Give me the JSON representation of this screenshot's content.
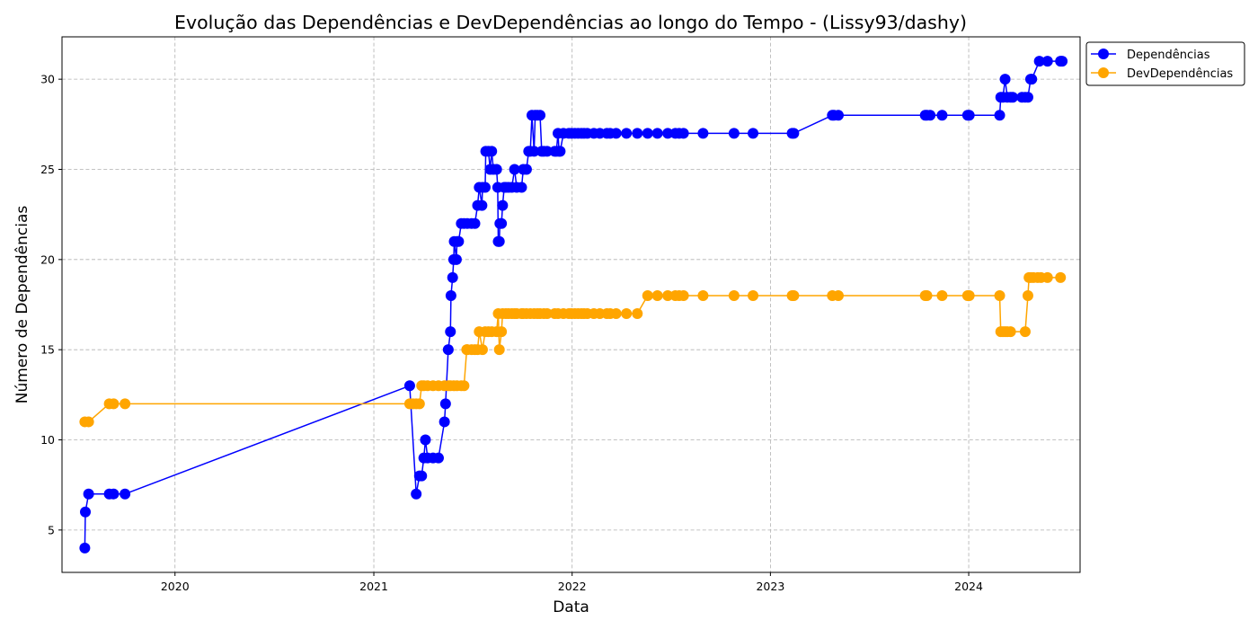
{
  "chart_data": {
    "type": "line",
    "title": "Evolução das Dependências e DevDependências ao longo do Tempo - (Lissy93/dashy)",
    "xlabel": "Data",
    "ylabel": "Número de Dependências",
    "xlim": [
      "2019-06-07",
      "2024-07-24"
    ],
    "ylim": [
      2.65,
      32.35
    ],
    "x_ticks": [
      "2020-01-01",
      "2021-01-01",
      "2022-01-01",
      "2023-01-01",
      "2024-01-01"
    ],
    "x_tick_labels": [
      "2020",
      "2021",
      "2022",
      "2023",
      "2024"
    ],
    "y_ticks": [
      5,
      10,
      15,
      20,
      25,
      30
    ],
    "grid": true,
    "legend_position": "upper-right-outside",
    "series": [
      {
        "name": "Dependências",
        "color": "#0000ff",
        "points": [
          [
            "2019-07-19",
            4
          ],
          [
            "2019-07-20",
            6
          ],
          [
            "2019-07-26",
            7
          ],
          [
            "2019-09-02",
            7
          ],
          [
            "2019-09-10",
            7
          ],
          [
            "2019-10-01",
            7
          ],
          [
            "2021-03-08",
            13
          ],
          [
            "2021-03-20",
            7
          ],
          [
            "2021-03-26",
            8
          ],
          [
            "2021-03-30",
            8
          ],
          [
            "2021-04-03",
            9
          ],
          [
            "2021-04-06",
            10
          ],
          [
            "2021-04-10",
            9
          ],
          [
            "2021-04-20",
            9
          ],
          [
            "2021-04-30",
            9
          ],
          [
            "2021-05-11",
            11
          ],
          [
            "2021-05-13",
            12
          ],
          [
            "2021-05-18",
            15
          ],
          [
            "2021-05-22",
            16
          ],
          [
            "2021-05-23",
            18
          ],
          [
            "2021-05-26",
            19
          ],
          [
            "2021-05-28",
            20
          ],
          [
            "2021-05-29",
            21
          ],
          [
            "2021-06-02",
            20
          ],
          [
            "2021-06-03",
            21
          ],
          [
            "2021-06-06",
            21
          ],
          [
            "2021-06-11",
            22
          ],
          [
            "2021-06-16",
            22
          ],
          [
            "2021-06-22",
            22
          ],
          [
            "2021-06-30",
            22
          ],
          [
            "2021-07-06",
            22
          ],
          [
            "2021-07-11",
            23
          ],
          [
            "2021-07-14",
            24
          ],
          [
            "2021-07-19",
            23
          ],
          [
            "2021-07-20",
            24
          ],
          [
            "2021-07-25",
            24
          ],
          [
            "2021-07-26",
            26
          ],
          [
            "2021-07-31",
            26
          ],
          [
            "2021-08-03",
            25
          ],
          [
            "2021-08-06",
            26
          ],
          [
            "2021-08-09",
            25
          ],
          [
            "2021-08-15",
            25
          ],
          [
            "2021-08-17",
            24
          ],
          [
            "2021-08-18",
            21
          ],
          [
            "2021-08-20",
            21
          ],
          [
            "2021-08-21",
            22
          ],
          [
            "2021-08-24",
            22
          ],
          [
            "2021-08-26",
            23
          ],
          [
            "2021-08-29",
            24
          ],
          [
            "2021-09-01",
            24
          ],
          [
            "2021-09-06",
            24
          ],
          [
            "2021-09-12",
            24
          ],
          [
            "2021-09-17",
            25
          ],
          [
            "2021-09-21",
            24
          ],
          [
            "2021-09-30",
            24
          ],
          [
            "2021-10-03",
            25
          ],
          [
            "2021-10-09",
            25
          ],
          [
            "2021-10-13",
            26
          ],
          [
            "2021-10-16",
            26
          ],
          [
            "2021-10-19",
            28
          ],
          [
            "2021-10-23",
            26
          ],
          [
            "2021-10-25",
            28
          ],
          [
            "2021-10-29",
            28
          ],
          [
            "2021-11-03",
            28
          ],
          [
            "2021-11-06",
            26
          ],
          [
            "2021-11-10",
            26
          ],
          [
            "2021-11-16",
            26
          ],
          [
            "2021-11-30",
            26
          ],
          [
            "2021-12-03",
            26
          ],
          [
            "2021-12-06",
            27
          ],
          [
            "2021-12-08",
            26
          ],
          [
            "2021-12-10",
            26
          ],
          [
            "2021-12-16",
            27
          ],
          [
            "2021-12-26",
            27
          ],
          [
            "2021-12-31",
            27
          ],
          [
            "2022-01-06",
            27
          ],
          [
            "2022-01-12",
            27
          ],
          [
            "2022-01-18",
            27
          ],
          [
            "2022-01-23",
            27
          ],
          [
            "2022-01-29",
            27
          ],
          [
            "2022-02-10",
            27
          ],
          [
            "2022-02-21",
            27
          ],
          [
            "2022-03-06",
            27
          ],
          [
            "2022-03-12",
            27
          ],
          [
            "2022-03-23",
            27
          ],
          [
            "2022-04-11",
            27
          ],
          [
            "2022-05-01",
            27
          ],
          [
            "2022-05-20",
            27
          ],
          [
            "2022-06-07",
            27
          ],
          [
            "2022-06-26",
            27
          ],
          [
            "2022-07-10",
            27
          ],
          [
            "2022-07-17",
            27
          ],
          [
            "2022-07-25",
            27
          ],
          [
            "2022-08-30",
            27
          ],
          [
            "2022-10-26",
            27
          ],
          [
            "2022-11-30",
            27
          ],
          [
            "2023-02-10",
            27
          ],
          [
            "2023-02-13",
            27
          ],
          [
            "2023-04-25",
            28
          ],
          [
            "2023-04-28",
            28
          ],
          [
            "2023-05-06",
            28
          ],
          [
            "2023-10-13",
            28
          ],
          [
            "2023-10-16",
            28
          ],
          [
            "2023-10-22",
            28
          ],
          [
            "2023-11-13",
            28
          ],
          [
            "2023-12-30",
            28
          ],
          [
            "2024-01-02",
            28
          ],
          [
            "2024-02-27",
            28
          ],
          [
            "2024-02-29",
            29
          ],
          [
            "2024-03-04",
            29
          ],
          [
            "2024-03-08",
            30
          ],
          [
            "2024-03-12",
            29
          ],
          [
            "2024-03-18",
            29
          ],
          [
            "2024-03-22",
            29
          ],
          [
            "2024-04-08",
            29
          ],
          [
            "2024-04-14",
            29
          ],
          [
            "2024-04-19",
            29
          ],
          [
            "2024-04-24",
            30
          ],
          [
            "2024-04-26",
            30
          ],
          [
            "2024-05-10",
            31
          ],
          [
            "2024-05-25",
            31
          ],
          [
            "2024-06-18",
            31
          ],
          [
            "2024-06-21",
            31
          ]
        ]
      },
      {
        "name": "DevDependências",
        "color": "#ffa500",
        "points": [
          [
            "2019-07-19",
            11
          ],
          [
            "2019-07-26",
            11
          ],
          [
            "2019-09-02",
            12
          ],
          [
            "2019-09-10",
            12
          ],
          [
            "2019-10-01",
            12
          ],
          [
            "2021-03-08",
            12
          ],
          [
            "2021-03-14",
            12
          ],
          [
            "2021-03-20",
            12
          ],
          [
            "2021-03-26",
            12
          ],
          [
            "2021-03-30",
            13
          ],
          [
            "2021-04-03",
            13
          ],
          [
            "2021-04-10",
            13
          ],
          [
            "2021-04-20",
            13
          ],
          [
            "2021-04-30",
            13
          ],
          [
            "2021-05-11",
            13
          ],
          [
            "2021-05-18",
            13
          ],
          [
            "2021-05-22",
            13
          ],
          [
            "2021-05-28",
            13
          ],
          [
            "2021-06-03",
            13
          ],
          [
            "2021-06-11",
            13
          ],
          [
            "2021-06-16",
            13
          ],
          [
            "2021-06-21",
            15
          ],
          [
            "2021-06-22",
            15
          ],
          [
            "2021-06-30",
            15
          ],
          [
            "2021-07-06",
            15
          ],
          [
            "2021-07-11",
            15
          ],
          [
            "2021-07-14",
            16
          ],
          [
            "2021-07-20",
            15
          ],
          [
            "2021-07-25",
            16
          ],
          [
            "2021-07-31",
            16
          ],
          [
            "2021-08-06",
            16
          ],
          [
            "2021-08-15",
            16
          ],
          [
            "2021-08-18",
            17
          ],
          [
            "2021-08-20",
            15
          ],
          [
            "2021-08-24",
            16
          ],
          [
            "2021-08-26",
            17
          ],
          [
            "2021-09-01",
            17
          ],
          [
            "2021-09-06",
            17
          ],
          [
            "2021-09-12",
            17
          ],
          [
            "2021-09-17",
            17
          ],
          [
            "2021-09-21",
            17
          ],
          [
            "2021-09-30",
            17
          ],
          [
            "2021-10-03",
            17
          ],
          [
            "2021-10-09",
            17
          ],
          [
            "2021-10-16",
            17
          ],
          [
            "2021-10-23",
            17
          ],
          [
            "2021-10-29",
            17
          ],
          [
            "2021-11-03",
            17
          ],
          [
            "2021-11-10",
            17
          ],
          [
            "2021-11-16",
            17
          ],
          [
            "2021-11-30",
            17
          ],
          [
            "2021-12-06",
            17
          ],
          [
            "2021-12-16",
            17
          ],
          [
            "2021-12-26",
            17
          ],
          [
            "2021-12-31",
            17
          ],
          [
            "2022-01-06",
            17
          ],
          [
            "2022-01-12",
            17
          ],
          [
            "2022-01-18",
            17
          ],
          [
            "2022-01-23",
            17
          ],
          [
            "2022-01-29",
            17
          ],
          [
            "2022-02-10",
            17
          ],
          [
            "2022-02-21",
            17
          ],
          [
            "2022-03-06",
            17
          ],
          [
            "2022-03-12",
            17
          ],
          [
            "2022-03-23",
            17
          ],
          [
            "2022-04-11",
            17
          ],
          [
            "2022-05-01",
            17
          ],
          [
            "2022-05-20",
            18
          ],
          [
            "2022-06-07",
            18
          ],
          [
            "2022-06-26",
            18
          ],
          [
            "2022-07-10",
            18
          ],
          [
            "2022-07-17",
            18
          ],
          [
            "2022-07-25",
            18
          ],
          [
            "2022-08-30",
            18
          ],
          [
            "2022-10-26",
            18
          ],
          [
            "2022-11-30",
            18
          ],
          [
            "2023-02-10",
            18
          ],
          [
            "2023-02-13",
            18
          ],
          [
            "2023-04-25",
            18
          ],
          [
            "2023-05-06",
            18
          ],
          [
            "2023-10-13",
            18
          ],
          [
            "2023-10-16",
            18
          ],
          [
            "2023-11-13",
            18
          ],
          [
            "2023-12-30",
            18
          ],
          [
            "2024-01-02",
            18
          ],
          [
            "2024-02-27",
            18
          ],
          [
            "2024-02-29",
            16
          ],
          [
            "2024-03-04",
            16
          ],
          [
            "2024-03-08",
            16
          ],
          [
            "2024-03-12",
            16
          ],
          [
            "2024-03-18",
            16
          ],
          [
            "2024-04-14",
            16
          ],
          [
            "2024-04-19",
            18
          ],
          [
            "2024-04-21",
            19
          ],
          [
            "2024-04-24",
            19
          ],
          [
            "2024-04-29",
            19
          ],
          [
            "2024-05-07",
            19
          ],
          [
            "2024-05-13",
            19
          ],
          [
            "2024-05-25",
            19
          ],
          [
            "2024-06-18",
            19
          ]
        ]
      }
    ]
  }
}
